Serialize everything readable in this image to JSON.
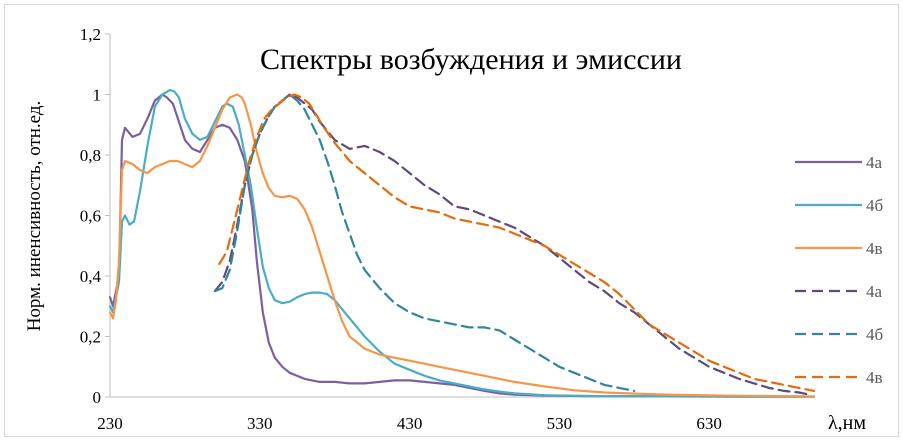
{
  "chart_data": {
    "type": "line",
    "title": "Спектры возбуждения и эмиссии",
    "xlabel": "λ,нм",
    "ylabel": "Норм. иненсивность, отн.ед.",
    "xlim": [
      230,
      700
    ],
    "ylim": [
      0,
      1.2
    ],
    "x_ticks": [
      "230",
      "330",
      "430",
      "530",
      "630"
    ],
    "y_ticks": [
      "0",
      "0,2",
      "0,4",
      "0,6",
      "0,8",
      "1",
      "1,2"
    ],
    "grid": false,
    "legend_position": "right",
    "series": [
      {
        "name": "4а",
        "color": "#7b60a0",
        "dash": false,
        "x": [
          230,
          232,
          234,
          236,
          238,
          240,
          245,
          250,
          255,
          260,
          265,
          268,
          272,
          276,
          280,
          285,
          290,
          295,
          300,
          305,
          310,
          315,
          320,
          325,
          328,
          332,
          336,
          340,
          345,
          350,
          360,
          370,
          380,
          390,
          400,
          410,
          420,
          430,
          440,
          450,
          460,
          470,
          480,
          490,
          500,
          520,
          550,
          600,
          650,
          700
        ],
        "y": [
          0.33,
          0.3,
          0.35,
          0.4,
          0.85,
          0.89,
          0.86,
          0.87,
          0.92,
          0.98,
          1.0,
          0.99,
          0.97,
          0.91,
          0.85,
          0.82,
          0.81,
          0.85,
          0.89,
          0.9,
          0.89,
          0.85,
          0.78,
          0.62,
          0.45,
          0.28,
          0.18,
          0.13,
          0.1,
          0.08,
          0.06,
          0.05,
          0.05,
          0.045,
          0.045,
          0.05,
          0.055,
          0.055,
          0.05,
          0.045,
          0.04,
          0.03,
          0.02,
          0.012,
          0.008,
          0.005,
          0.003,
          0.002,
          0.001,
          0.001
        ]
      },
      {
        "name": "4б",
        "color": "#4bacc6",
        "dash": false,
        "x": [
          230,
          232,
          234,
          236,
          238,
          240,
          243,
          246,
          250,
          255,
          260,
          265,
          270,
          273,
          276,
          280,
          285,
          290,
          295,
          300,
          305,
          308,
          312,
          316,
          320,
          324,
          328,
          332,
          336,
          340,
          345,
          350,
          355,
          360,
          365,
          370,
          375,
          380,
          390,
          400,
          410,
          420,
          430,
          440,
          450,
          460,
          470,
          480,
          490,
          500,
          520,
          540,
          560,
          600,
          700
        ],
        "y": [
          0.3,
          0.28,
          0.33,
          0.38,
          0.58,
          0.6,
          0.57,
          0.58,
          0.68,
          0.83,
          0.96,
          1.0,
          1.015,
          1.01,
          0.99,
          0.92,
          0.87,
          0.85,
          0.86,
          0.91,
          0.96,
          0.97,
          0.96,
          0.9,
          0.8,
          0.7,
          0.56,
          0.43,
          0.36,
          0.32,
          0.31,
          0.315,
          0.33,
          0.34,
          0.345,
          0.345,
          0.34,
          0.32,
          0.26,
          0.2,
          0.15,
          0.11,
          0.09,
          0.07,
          0.055,
          0.045,
          0.035,
          0.025,
          0.018,
          0.012,
          0.006,
          0.004,
          0.003,
          0.002,
          0.001
        ]
      },
      {
        "name": "4в",
        "color": "#f79646",
        "dash": false,
        "x": [
          230,
          232,
          234,
          236,
          238,
          240,
          245,
          250,
          255,
          260,
          265,
          270,
          275,
          280,
          285,
          290,
          295,
          300,
          305,
          310,
          315,
          318,
          320,
          324,
          328,
          332,
          336,
          340,
          345,
          350,
          355,
          360,
          365,
          370,
          375,
          380,
          385,
          390,
          400,
          410,
          420,
          430,
          440,
          450,
          460,
          470,
          480,
          490,
          500,
          520,
          540,
          560,
          600,
          650,
          700
        ],
        "y": [
          0.28,
          0.26,
          0.32,
          0.45,
          0.75,
          0.78,
          0.77,
          0.75,
          0.74,
          0.76,
          0.77,
          0.78,
          0.78,
          0.77,
          0.76,
          0.78,
          0.83,
          0.89,
          0.95,
          0.99,
          1.0,
          0.99,
          0.97,
          0.9,
          0.81,
          0.74,
          0.69,
          0.665,
          0.66,
          0.665,
          0.655,
          0.62,
          0.56,
          0.48,
          0.4,
          0.32,
          0.25,
          0.2,
          0.16,
          0.14,
          0.13,
          0.12,
          0.11,
          0.1,
          0.09,
          0.08,
          0.07,
          0.06,
          0.05,
          0.035,
          0.022,
          0.015,
          0.008,
          0.004,
          0.002
        ]
      },
      {
        "name": "4а",
        "color": "#604a7b",
        "dash": true,
        "x": [
          300,
          305,
          310,
          315,
          320,
          325,
          330,
          335,
          340,
          345,
          350,
          355,
          360,
          365,
          370,
          375,
          380,
          390,
          400,
          410,
          420,
          430,
          440,
          450,
          460,
          470,
          480,
          490,
          500,
          510,
          520,
          530,
          540,
          550,
          560,
          570,
          580,
          590,
          600,
          610,
          620,
          630,
          640,
          650,
          660,
          670,
          680,
          690,
          695
        ],
        "y": [
          0.35,
          0.38,
          0.45,
          0.57,
          0.7,
          0.8,
          0.87,
          0.92,
          0.96,
          0.98,
          1.0,
          0.99,
          0.97,
          0.95,
          0.91,
          0.88,
          0.85,
          0.82,
          0.83,
          0.81,
          0.78,
          0.74,
          0.7,
          0.67,
          0.63,
          0.62,
          0.6,
          0.58,
          0.56,
          0.53,
          0.5,
          0.46,
          0.42,
          0.38,
          0.35,
          0.31,
          0.28,
          0.24,
          0.2,
          0.16,
          0.13,
          0.1,
          0.08,
          0.06,
          0.045,
          0.03,
          0.02,
          0.015,
          0.01
        ]
      },
      {
        "name": "4б",
        "color": "#31859c",
        "dash": true,
        "x": [
          300,
          305,
          310,
          315,
          320,
          325,
          330,
          335,
          340,
          345,
          350,
          355,
          360,
          365,
          370,
          375,
          380,
          385,
          390,
          395,
          400,
          410,
          420,
          430,
          440,
          450,
          460,
          470,
          480,
          490,
          500,
          510,
          520,
          530,
          540,
          550,
          560,
          570,
          580
        ],
        "y": [
          0.35,
          0.36,
          0.42,
          0.55,
          0.7,
          0.8,
          0.87,
          0.92,
          0.96,
          0.98,
          1.0,
          0.98,
          0.95,
          0.9,
          0.85,
          0.78,
          0.7,
          0.61,
          0.54,
          0.47,
          0.42,
          0.36,
          0.31,
          0.28,
          0.26,
          0.25,
          0.24,
          0.23,
          0.23,
          0.22,
          0.19,
          0.16,
          0.13,
          0.1,
          0.08,
          0.06,
          0.04,
          0.03,
          0.02
        ]
      },
      {
        "name": "4в",
        "color": "#e46c0a",
        "dash": true,
        "x": [
          303,
          308,
          313,
          318,
          323,
          328,
          333,
          338,
          343,
          348,
          353,
          358,
          363,
          368,
          373,
          380,
          390,
          400,
          410,
          420,
          430,
          440,
          450,
          460,
          470,
          480,
          490,
          500,
          510,
          520,
          530,
          540,
          550,
          560,
          570,
          580,
          590,
          600,
          610,
          620,
          630,
          640,
          650,
          660,
          670,
          680,
          690,
          700
        ],
        "y": [
          0.44,
          0.48,
          0.58,
          0.68,
          0.78,
          0.86,
          0.92,
          0.95,
          0.97,
          0.99,
          1.0,
          0.99,
          0.97,
          0.93,
          0.89,
          0.84,
          0.78,
          0.74,
          0.7,
          0.66,
          0.63,
          0.62,
          0.61,
          0.59,
          0.58,
          0.57,
          0.56,
          0.54,
          0.52,
          0.5,
          0.47,
          0.44,
          0.41,
          0.38,
          0.34,
          0.29,
          0.24,
          0.21,
          0.18,
          0.15,
          0.12,
          0.1,
          0.08,
          0.06,
          0.05,
          0.04,
          0.03,
          0.02
        ]
      }
    ]
  }
}
